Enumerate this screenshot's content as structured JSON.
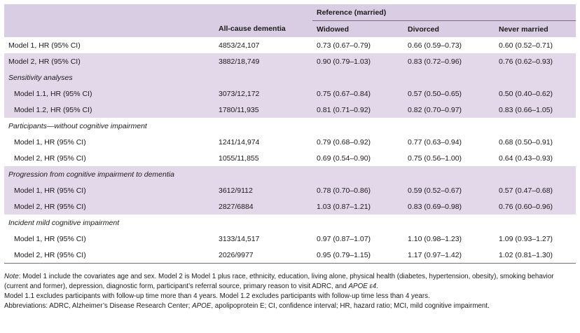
{
  "header": {
    "reference_label": "Reference (married)",
    "columns": [
      "All-cause dementia",
      "Widowed",
      "Divorced",
      "Never married"
    ]
  },
  "rows": [
    {
      "kind": "data",
      "label": "Model 1, HR (95% CI)",
      "n": "4853/24,107",
      "widowed": "0.73 (0.67–0.79)",
      "divorced": "0.66 (0.59–0.73)",
      "never": "0.60 (0.52–0.71)",
      "shade": false,
      "indent": false
    },
    {
      "kind": "data",
      "label": "Model 2, HR (95% CI)",
      "n": "3882/18,749",
      "widowed": "0.90 (0.79–1.03)",
      "divorced": "0.83 (0.72–0.96)",
      "never": "0.76 (0.62–0.93)",
      "shade": true,
      "indent": false
    },
    {
      "kind": "section",
      "label": "Sensitivity analyses",
      "shade": true
    },
    {
      "kind": "data",
      "label": "Model 1.1, HR (95% CI)",
      "n": "3073/12,172",
      "widowed": "0.75 (0.67–0.84)",
      "divorced": "0.57 (0.50–0.65)",
      "never": "0.50 (0.40–0.62)",
      "shade": true,
      "indent": true
    },
    {
      "kind": "data",
      "label": "Model 1.2, HR (95% CI)",
      "n": "1780/11,935",
      "widowed": "0.81 (0.71–0.92)",
      "divorced": "0.82 (0.70–0.97)",
      "never": "0.83 (0.66–1.05)",
      "shade": true,
      "indent": true
    },
    {
      "kind": "section",
      "label": "Participants—without cognitive impairment",
      "shade": false
    },
    {
      "kind": "data",
      "label": "Model 1, HR (95% CI)",
      "n": "1241/14,974",
      "widowed": "0.79 (0.68–0.92)",
      "divorced": "0.77 (0.63–0.94)",
      "never": "0.68 (0.50–0.91)",
      "shade": false,
      "indent": true
    },
    {
      "kind": "data",
      "label": "Model 2, HR (95% CI)",
      "n": "1055/11,855",
      "widowed": "0.69 (0.54–0.90)",
      "divorced": "0.75 (0.56–1.00)",
      "never": "0.64 (0.43–0.93)",
      "shade": false,
      "indent": true
    },
    {
      "kind": "section",
      "label": "Progression from cognitive impairment to dementia",
      "shade": true
    },
    {
      "kind": "data",
      "label": "Model 1, HR (95% CI)",
      "n": "3612/9112",
      "widowed": "0.78 (0.70–0.86)",
      "divorced": "0.59 (0.52–0.67)",
      "never": "0.57 (0.47–0.68)",
      "shade": true,
      "indent": true
    },
    {
      "kind": "data",
      "label": "Model 2, HR (95% CI)",
      "n": "2827/6884",
      "widowed": "1.03 (0.87–1.21)",
      "divorced": "0.83 (0.69–0.98)",
      "never": "0.76 (0.60–0.96)",
      "shade": true,
      "indent": true
    },
    {
      "kind": "section",
      "label": "Incident mild cognitive impairment",
      "shade": false
    },
    {
      "kind": "data",
      "label": "Model 1, HR (95% CI)",
      "n": "3133/14,517",
      "widowed": "0.97 (0.87–1.07)",
      "divorced": "1.10 (0.98–1.23)",
      "never": "1.09 (0.93–1.27)",
      "shade": false,
      "indent": true
    },
    {
      "kind": "data",
      "label": "Model 2, HR (95% CI)",
      "n": "2026/9977",
      "widowed": "0.95 (0.79–1.15)",
      "divorced": "1.17 (0.97–1.42)",
      "never": "1.02 (0.81–1.30)",
      "shade": false,
      "indent": true
    }
  ],
  "notes": {
    "note_label": "Note",
    "note_body": ": Model 1 include the covariates age and sex. Model 2 is Model 1 plus race, ethnicity, education, living alone, physical health (diabetes, hypertension, obesity), smoking behavior (current and former), depression, diagnostic form, participant’s referral source, primary reason to visit ADRC, and ",
    "note_apoe": "APOE ε4",
    "note_end": ".",
    "model_line": "Model 1.1 excludes participants with follow-up time more than 4 years. Model 1.2 excludes participants with follow-up time less than 4 years.",
    "abbr_start": "Abbreviations: ADRC, Alzheimer’s Disease Research Center; ",
    "abbr_apoe": "APOE",
    "abbr_end": ", apolipoprotein E; CI, confidence interval; HR, hazard ratio; MCI, mild cognitive impairment."
  }
}
